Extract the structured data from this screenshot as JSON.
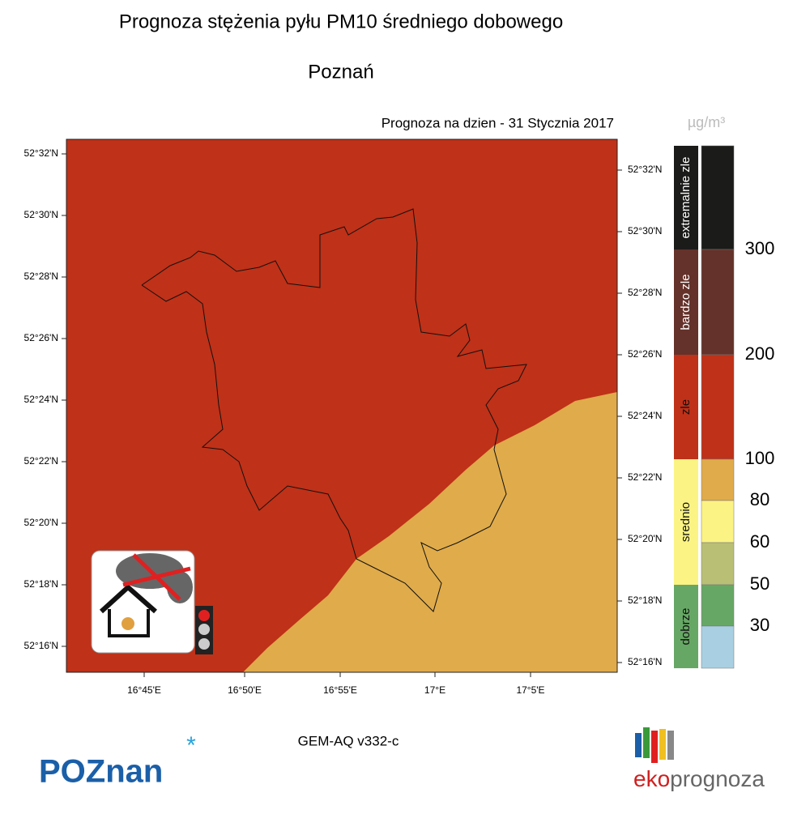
{
  "title": "Prognoza stężenia pyłu PM10 średniego dobowego",
  "subtitle": "Poznań",
  "forecast_date": "Prognoza na dzien -  31 Stycznia 2017",
  "map": {
    "lat_ticks": [
      "52°32'N",
      "52°30'N",
      "52°28'N",
      "52°26'N",
      "52°24'N",
      "52°22'N",
      "52°20'N",
      "52°18'N",
      "52°16'N"
    ],
    "lon_ticks": [
      "16°45'E",
      "16°50'E",
      "16°55'E",
      "17°E",
      "17°5'E"
    ]
  },
  "legend": {
    "unit": "µg/m³",
    "classes": [
      {
        "label": "extremalnie zle",
        "color": "#1b1b19"
      },
      {
        "label": "bardzo zle",
        "color": "#64322a"
      },
      {
        "label": "zle",
        "color": "#bf3118"
      },
      {
        "label": "srednio",
        "color": "#fbf383"
      },
      {
        "label": "dobrze",
        "color": "#67a765"
      }
    ],
    "scale_colors": [
      "#1b1b19",
      "#64322a",
      "#bf3118",
      "#e0ab4a",
      "#fbf383",
      "#b9bf75",
      "#67a765",
      "#a8d0e2"
    ],
    "thresholds": [
      300,
      200,
      100,
      80,
      60,
      50,
      30
    ]
  },
  "model": "GEM-AQ v332-c",
  "logos": {
    "poznan": "POZnan",
    "eko": "eko",
    "prognoza": "prognoza"
  }
}
